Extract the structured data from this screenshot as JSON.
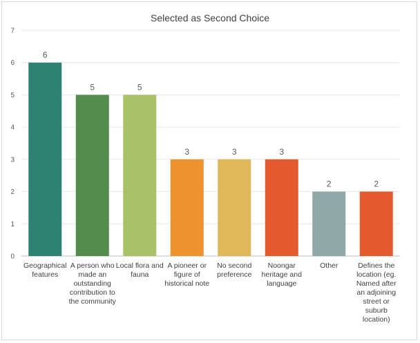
{
  "chart_data": {
    "type": "bar",
    "title": "Selected as Second Choice",
    "xlabel": "",
    "ylabel": "",
    "ylim": [
      0,
      7
    ],
    "yticks": [
      0,
      1,
      2,
      3,
      4,
      5,
      6,
      7
    ],
    "grid": true,
    "categories": [
      "Geographical features",
      "A person who made an outstanding contribution to the community",
      "Local flora and fauna",
      "A pioneer or figure of historical note",
      "No second preference",
      "Noongar heritage and language",
      "Other",
      "Defines the location (eg. Named after an adjoining street or suburb location)"
    ],
    "values": [
      6,
      5,
      5,
      3,
      3,
      3,
      2,
      2
    ],
    "colors": [
      "#2e8272",
      "#548c4e",
      "#a9c168",
      "#ec922e",
      "#dfb85a",
      "#e45a2c",
      "#8ea9a8",
      "#e45a2c"
    ]
  }
}
